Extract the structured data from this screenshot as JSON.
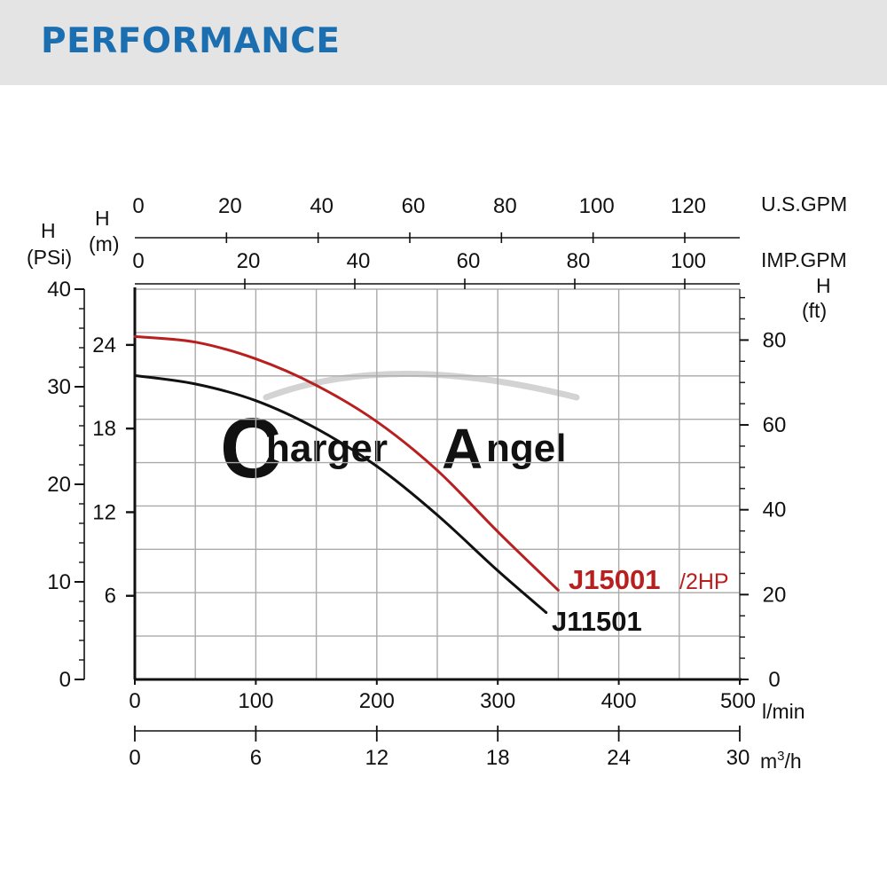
{
  "header": {
    "title": "PERFORMANCE",
    "background": "#e4e4e4",
    "title_color": "#1b6fb0"
  },
  "watermark": {
    "initial_1": "C",
    "text_1": "harger",
    "initial_2": "A",
    "text_2": "ngel"
  },
  "chart_data": {
    "type": "line",
    "grid": true,
    "x_axes": {
      "lpm": {
        "ticks": [
          0,
          100,
          200,
          300,
          400,
          500
        ],
        "unit": "l/min",
        "range": [
          0,
          500
        ]
      },
      "m3h": {
        "ticks": [
          0,
          6,
          12,
          18,
          24,
          30
        ],
        "unit_base": "m",
        "unit_sup": "3",
        "unit_suffix": "/h",
        "range": [
          0,
          30
        ]
      },
      "us_gpm": {
        "ticks": [
          0,
          20,
          40,
          60,
          80,
          100,
          120
        ],
        "unit": "U.S.GPM",
        "range": [
          0,
          132
        ]
      },
      "imp_gpm": {
        "ticks": [
          0,
          20,
          40,
          60,
          80,
          100
        ],
        "unit": "IMP.GPM",
        "range": [
          0,
          110
        ]
      }
    },
    "y_axes": {
      "m": {
        "ticks": [
          6,
          12,
          18,
          24
        ],
        "label_1": "H",
        "label_2": "(m)",
        "range": [
          0,
          28
        ]
      },
      "psi": {
        "ticks": [
          0,
          10,
          20,
          30,
          40
        ],
        "label_1": "H",
        "label_2": "(PSi)",
        "range": [
          0,
          40
        ]
      },
      "ft": {
        "ticks": [
          0,
          20,
          40,
          60,
          80
        ],
        "label_1": "H",
        "label_2": "(ft)",
        "range": [
          0,
          92
        ]
      }
    },
    "series": [
      {
        "name": "J15001",
        "suffix": "/2HP",
        "color": "#b82020",
        "x": [
          0,
          50,
          100,
          150,
          200,
          250,
          300,
          350
        ],
        "y": [
          24.6,
          24.2,
          23.0,
          21.1,
          18.5,
          15.0,
          10.6,
          6.4
        ]
      },
      {
        "name": "J11501",
        "color": "#111111",
        "x": [
          0,
          50,
          100,
          150,
          200,
          250,
          300,
          340
        ],
        "y": [
          21.8,
          21.2,
          20.0,
          18.0,
          15.3,
          11.8,
          7.8,
          4.8
        ]
      }
    ]
  }
}
